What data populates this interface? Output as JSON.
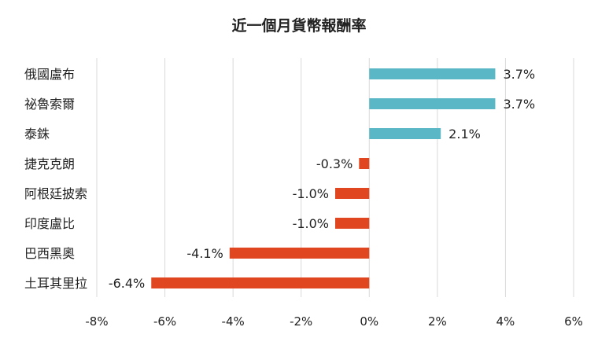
{
  "chart_data": {
    "type": "bar",
    "orientation": "horizontal",
    "title": "近一個月貨幣報酬率",
    "xlabel": "",
    "ylabel": "",
    "categories": [
      "俄國盧布",
      "祕魯索爾",
      "泰銖",
      "捷克克朗",
      "阿根廷披索",
      "印度盧比",
      "巴西黑奧",
      "土耳其里拉"
    ],
    "values": [
      3.7,
      3.7,
      2.1,
      -0.3,
      -1.0,
      -1.0,
      -4.1,
      -6.4
    ],
    "value_labels": [
      "3.7%",
      "3.7%",
      "2.1%",
      "-0.3%",
      "-1.0%",
      "-1.0%",
      "-4.1%",
      "-6.4%"
    ],
    "xlim": [
      -8,
      6
    ],
    "x_ticks": [
      -8,
      -6,
      -4,
      -2,
      0,
      2,
      4,
      6
    ],
    "x_tick_labels": [
      "-8%",
      "-6%",
      "-4%",
      "-2%",
      "0%",
      "2%",
      "4%",
      "6%"
    ],
    "grid": "vertical",
    "legend": "none",
    "colors": {
      "positive": "#5ab8c6",
      "negative": "#e0461f",
      "grid": "#d9d9d9",
      "text": "#222222"
    }
  }
}
